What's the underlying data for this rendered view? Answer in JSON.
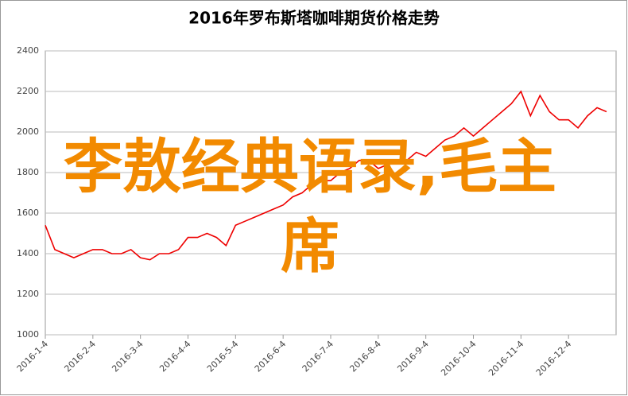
{
  "chart_data": {
    "type": "line",
    "title": "2016年罗布斯塔咖啡期货价格走势",
    "annotation": "李敖经典语录,毛主席",
    "categories": [
      "2016-1-4",
      null,
      null,
      null,
      null,
      "2016-2-4",
      null,
      null,
      null,
      null,
      "2016-3-4",
      null,
      null,
      null,
      null,
      "2016-4-4",
      null,
      null,
      null,
      null,
      "2016-5-4",
      null,
      null,
      null,
      null,
      "2016-6-4",
      null,
      null,
      null,
      null,
      "2016-7-4",
      null,
      null,
      null,
      null,
      "2016-8-4",
      null,
      null,
      null,
      null,
      "2016-9-4",
      null,
      null,
      null,
      null,
      "2016-10-4",
      null,
      null,
      null,
      null,
      "2016-11-4",
      null,
      null,
      null,
      null,
      "2016-12-4",
      null,
      null,
      null,
      null
    ],
    "values": [
      1540,
      1420,
      1400,
      1380,
      1400,
      1420,
      1420,
      1400,
      1400,
      1420,
      1380,
      1370,
      1400,
      1400,
      1420,
      1480,
      1480,
      1500,
      1480,
      1440,
      1540,
      1560,
      1580,
      1600,
      1620,
      1640,
      1680,
      1700,
      1740,
      1760,
      1760,
      1800,
      1820,
      1860,
      1860,
      1820,
      1840,
      1850,
      1860,
      1900,
      1880,
      1920,
      1960,
      1980,
      2020,
      1980,
      2020,
      2060,
      2100,
      2140,
      2200,
      2080,
      2180,
      2100,
      2060,
      2060,
      2020,
      2080,
      2120,
      2100
    ],
    "color": "#ee0000",
    "ylim": [
      1000,
      2400
    ],
    "yticks": [
      1000,
      1200,
      1400,
      1600,
      1800,
      2000,
      2200,
      2400
    ],
    "grid": true
  }
}
